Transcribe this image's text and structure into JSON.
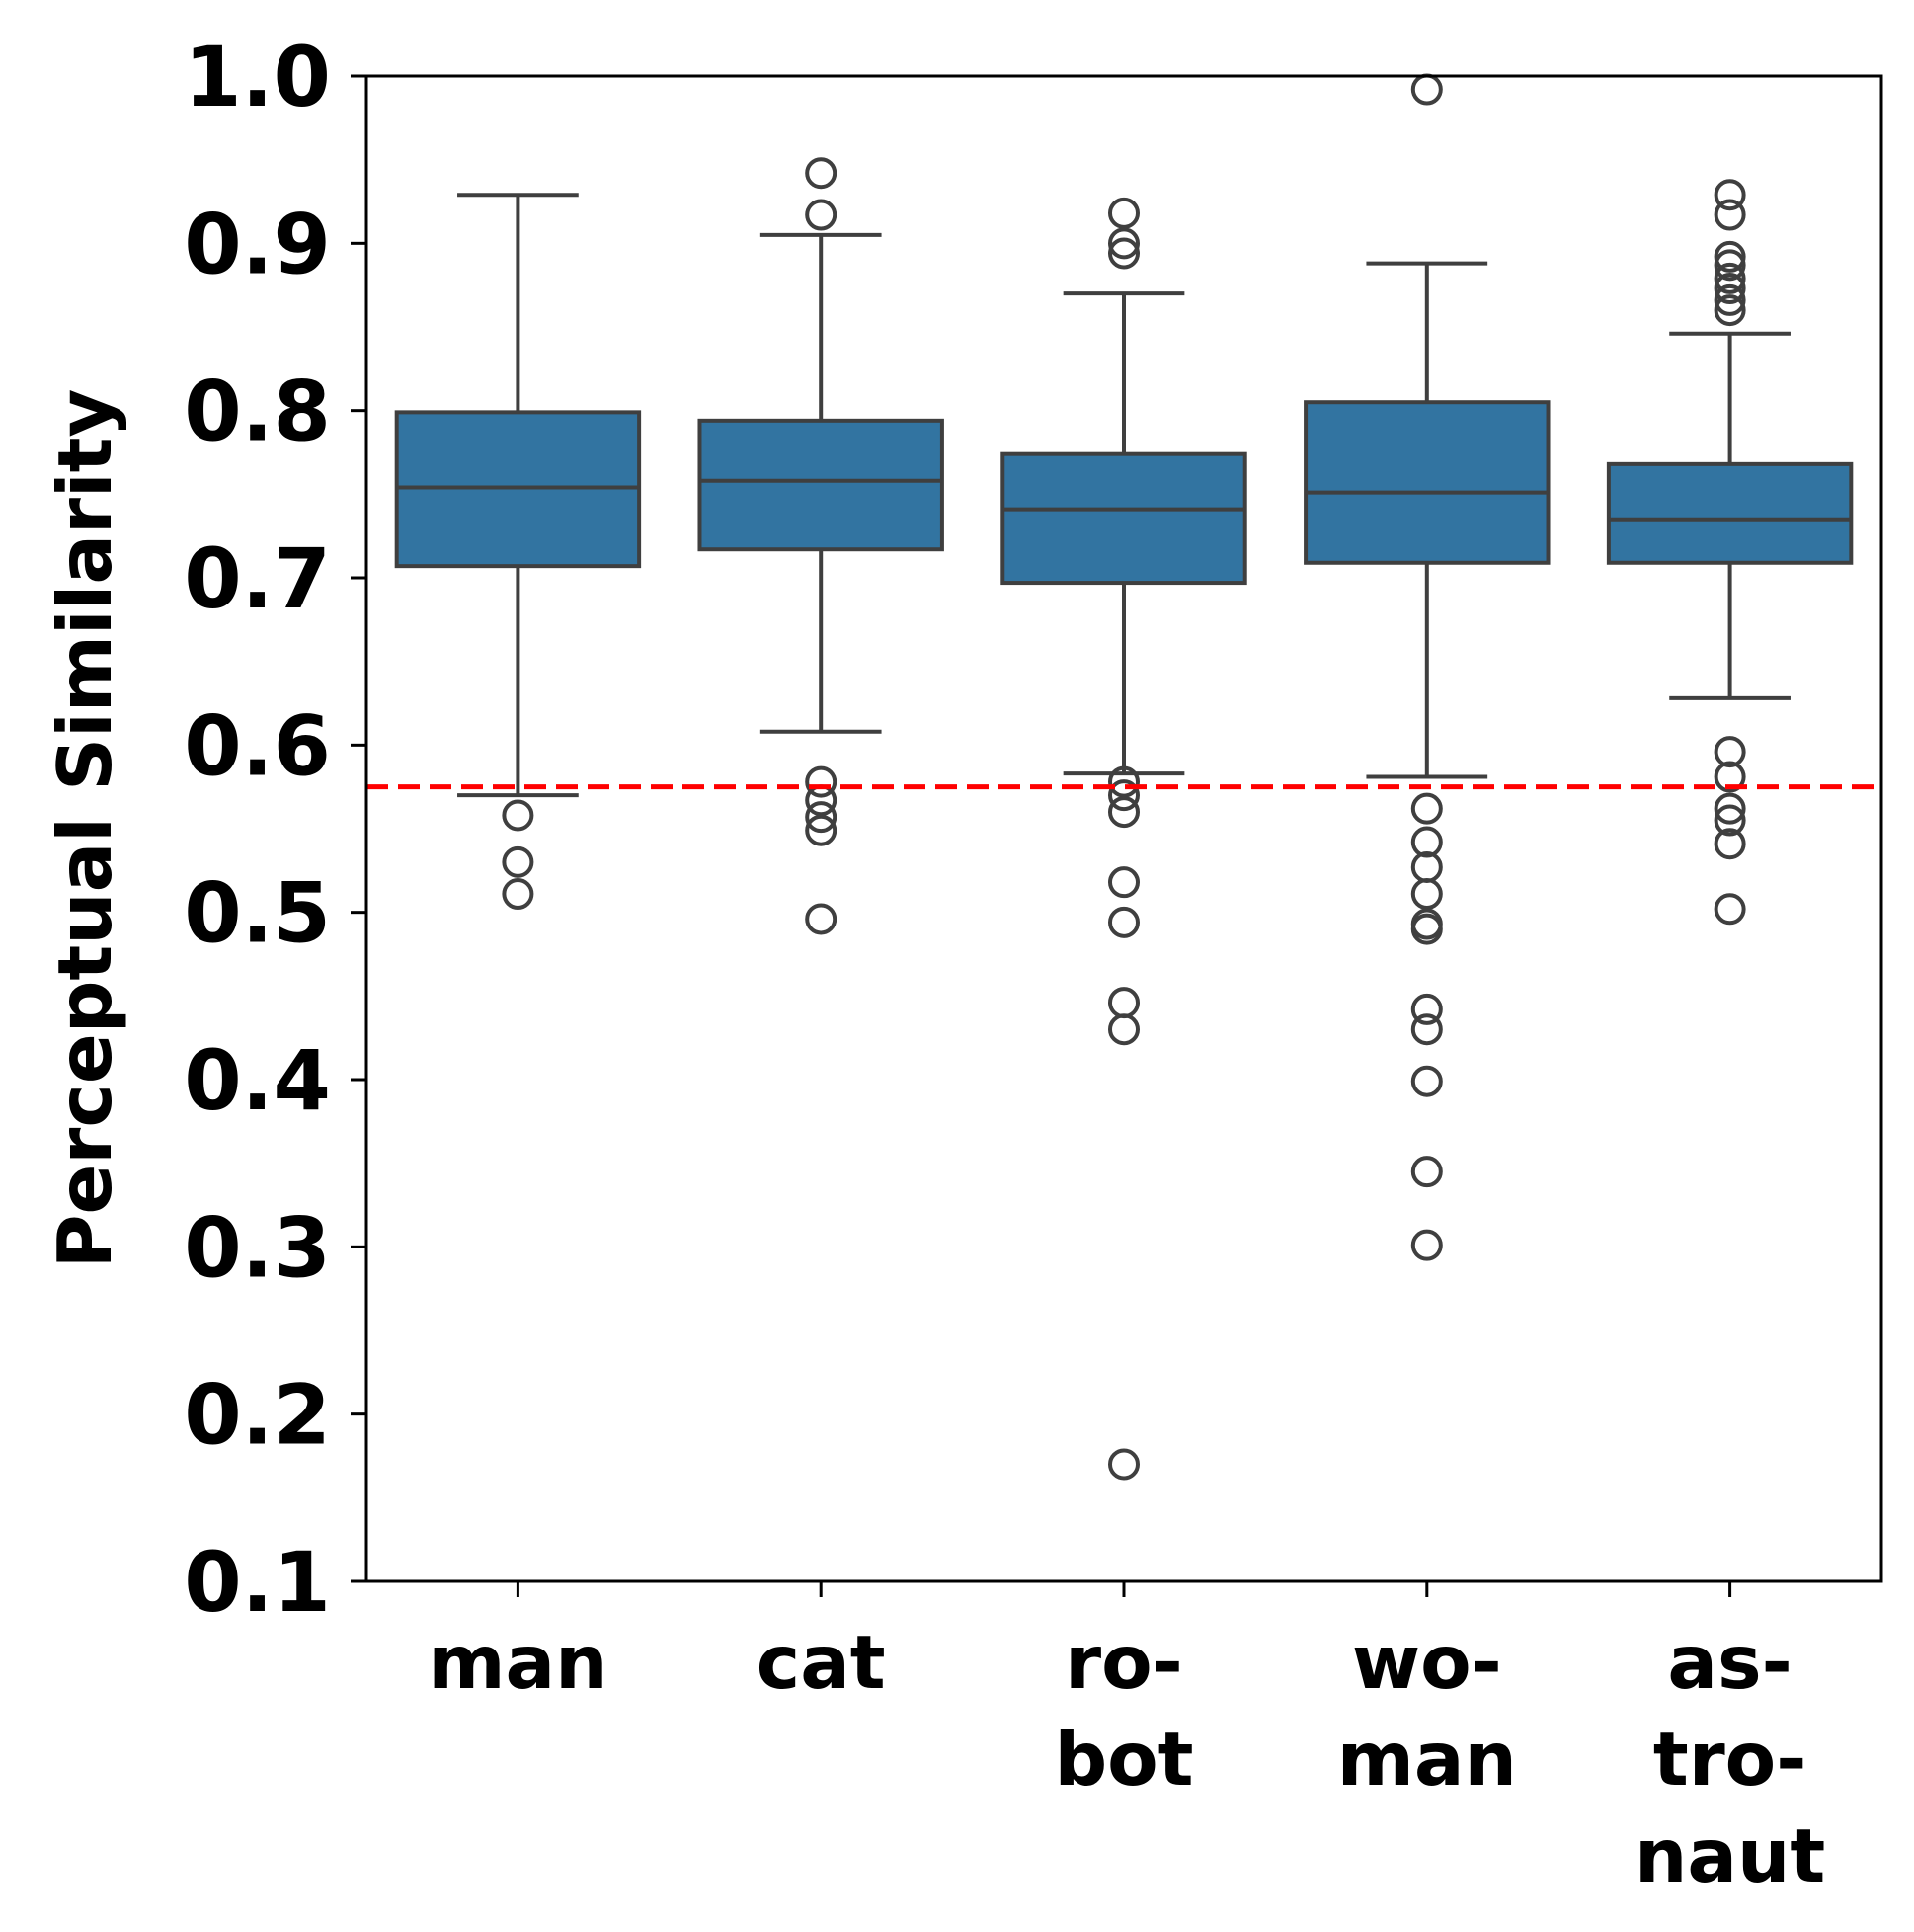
{
  "chart_data": {
    "type": "box",
    "ylabel": "Perceptual Similarity",
    "xlabel": "",
    "ylim": [
      0.1,
      1.0
    ],
    "yticks": [
      "0.1",
      "0.2",
      "0.3",
      "0.4",
      "0.5",
      "0.6",
      "0.7",
      "0.8",
      "0.9",
      "1.0"
    ],
    "threshold": {
      "value": 0.575,
      "color": "#ff0000",
      "style": "dashed"
    },
    "box_color": "#3274a1",
    "edge_color": "#3f3f3f",
    "categories": [
      {
        "label": "man",
        "label_lines": [
          "man"
        ],
        "whislo": 0.57,
        "q1": 0.707,
        "median": 0.754,
        "q3": 0.799,
        "whishi": 0.929,
        "fliers": [
          0.558,
          0.53,
          0.511
        ]
      },
      {
        "label": "cat",
        "label_lines": [
          "cat"
        ],
        "whislo": 0.608,
        "q1": 0.717,
        "median": 0.758,
        "q3": 0.794,
        "whishi": 0.905,
        "fliers": [
          0.942,
          0.917,
          0.578,
          0.567,
          0.557,
          0.549,
          0.496
        ]
      },
      {
        "label": "robot",
        "label_lines": [
          "ro-",
          "bot"
        ],
        "whislo": 0.583,
        "q1": 0.697,
        "median": 0.741,
        "q3": 0.774,
        "whishi": 0.87,
        "fliers": [
          0.918,
          0.9,
          0.894,
          0.578,
          0.57,
          0.56,
          0.518,
          0.494,
          0.446,
          0.43,
          0.17
        ]
      },
      {
        "label": "woman",
        "label_lines": [
          "wo-",
          "man"
        ],
        "whislo": 0.581,
        "q1": 0.709,
        "median": 0.751,
        "q3": 0.805,
        "whishi": 0.888,
        "fliers": [
          0.992,
          0.562,
          0.542,
          0.527,
          0.511,
          0.493,
          0.49,
          0.442,
          0.43,
          0.399,
          0.345,
          0.301
        ]
      },
      {
        "label": "astronaut",
        "label_lines": [
          "as-",
          "tro-",
          "naut"
        ],
        "whislo": 0.628,
        "q1": 0.709,
        "median": 0.735,
        "q3": 0.768,
        "whishi": 0.846,
        "fliers": [
          0.929,
          0.917,
          0.892,
          0.887,
          0.879,
          0.873,
          0.866,
          0.86,
          0.596,
          0.581,
          0.562,
          0.555,
          0.541,
          0.502
        ]
      }
    ]
  }
}
